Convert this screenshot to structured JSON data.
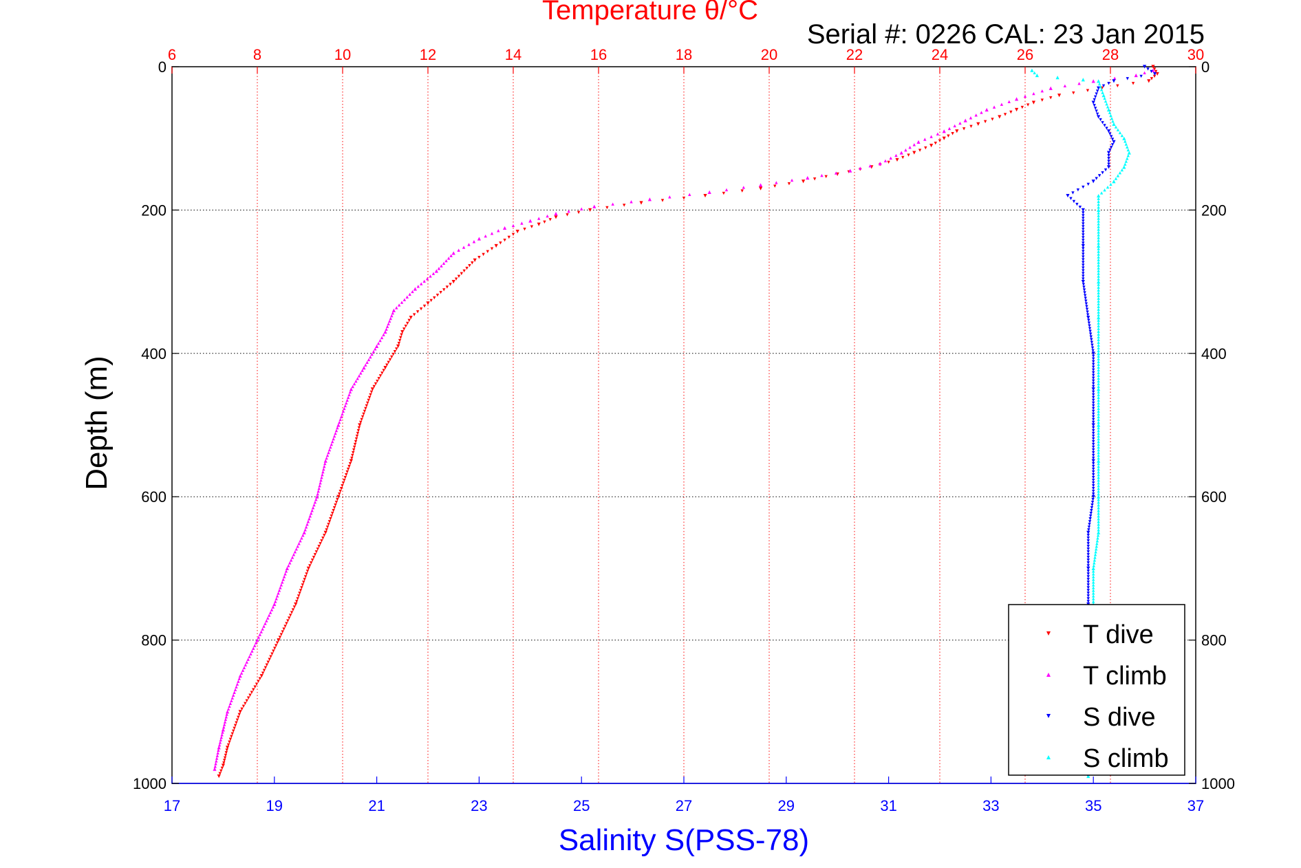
{
  "chart_data": {
    "type": "scatter",
    "title": "Temperature θ/°C",
    "subtitle": "Serial #: 0226  CAL: 23 Jan 2015",
    "ylabel": "Depth (m)",
    "xlabel_bottom": "Salinity S(PSS-78)",
    "ylim": [
      0,
      1000
    ],
    "y_reversed": true,
    "top_axis": {
      "min": 6,
      "max": 30,
      "ticks": [
        6,
        8,
        10,
        12,
        14,
        16,
        18,
        20,
        22,
        24,
        26,
        28,
        30
      ],
      "tick_labels": [
        "6",
        "8",
        "10",
        "12",
        "14",
        "16",
        "18",
        "20",
        "22",
        "24",
        "26",
        "28",
        "30"
      ]
    },
    "bottom_axis": {
      "min": 17,
      "max": 37,
      "ticks": [
        17,
        19,
        21,
        23,
        25,
        27,
        29,
        31,
        33,
        35,
        37
      ],
      "tick_labels": [
        "17",
        "19",
        "21",
        "23",
        "25",
        "27",
        "29",
        "31",
        "33",
        "35",
        "37"
      ]
    },
    "y_ticks": [
      0,
      200,
      400,
      600,
      800,
      1000
    ],
    "y_tick_labels": [
      "0",
      "200",
      "400",
      "600",
      "800",
      "1000"
    ],
    "grid": true,
    "legend_position": "bottom-right",
    "colors": {
      "title": "#ff0000",
      "top_axis": "#ff0000",
      "bottom_axis": "#0000ff",
      "t_dive": "#ff0000",
      "t_climb": "#ff00ff",
      "s_dive": "#0000ff",
      "s_climb": "#00ffff"
    },
    "series": [
      {
        "name": "T dive",
        "axis": "top",
        "color": "#ff0000",
        "marker": "triangle-down",
        "points": [
          [
            29.0,
            0
          ],
          [
            29.1,
            10
          ],
          [
            28.9,
            20
          ],
          [
            27.8,
            30
          ],
          [
            26.8,
            40
          ],
          [
            26.2,
            50
          ],
          [
            25.8,
            60
          ],
          [
            25.4,
            70
          ],
          [
            24.9,
            80
          ],
          [
            24.4,
            90
          ],
          [
            24.1,
            100
          ],
          [
            23.8,
            110
          ],
          [
            23.4,
            120
          ],
          [
            23.0,
            130
          ],
          [
            22.4,
            140
          ],
          [
            21.6,
            150
          ],
          [
            20.8,
            160
          ],
          [
            19.8,
            170
          ],
          [
            18.5,
            180
          ],
          [
            17.0,
            190
          ],
          [
            15.8,
            200
          ],
          [
            15.0,
            210
          ],
          [
            14.6,
            220
          ],
          [
            14.1,
            230
          ],
          [
            13.6,
            250
          ],
          [
            13.1,
            270
          ],
          [
            12.6,
            300
          ],
          [
            12.0,
            330
          ],
          [
            11.6,
            350
          ],
          [
            11.4,
            370
          ],
          [
            11.3,
            390
          ],
          [
            11.0,
            420
          ],
          [
            10.7,
            450
          ],
          [
            10.4,
            500
          ],
          [
            10.2,
            550
          ],
          [
            9.9,
            600
          ],
          [
            9.6,
            650
          ],
          [
            9.2,
            700
          ],
          [
            8.9,
            750
          ],
          [
            8.5,
            800
          ],
          [
            8.1,
            850
          ],
          [
            7.6,
            900
          ],
          [
            7.3,
            950
          ],
          [
            7.2,
            975
          ],
          [
            7.1,
            990
          ]
        ]
      },
      {
        "name": "T climb",
        "axis": "top",
        "color": "#ff00ff",
        "marker": "triangle-up",
        "points": [
          [
            29.0,
            5
          ],
          [
            28.6,
            12
          ],
          [
            27.6,
            20
          ],
          [
            26.6,
            30
          ],
          [
            25.8,
            45
          ],
          [
            25.1,
            60
          ],
          [
            24.6,
            75
          ],
          [
            24.1,
            90
          ],
          [
            23.5,
            105
          ],
          [
            23.1,
            120
          ],
          [
            22.6,
            135
          ],
          [
            21.9,
            145
          ],
          [
            20.9,
            155
          ],
          [
            19.8,
            165
          ],
          [
            18.6,
            175
          ],
          [
            17.2,
            185
          ],
          [
            15.9,
            195
          ],
          [
            15.0,
            205
          ],
          [
            14.4,
            215
          ],
          [
            13.8,
            225
          ],
          [
            13.2,
            240
          ],
          [
            12.6,
            260
          ],
          [
            12.2,
            285
          ],
          [
            11.7,
            310
          ],
          [
            11.2,
            340
          ],
          [
            11.0,
            370
          ],
          [
            10.8,
            390
          ],
          [
            10.5,
            420
          ],
          [
            10.2,
            450
          ],
          [
            9.9,
            500
          ],
          [
            9.6,
            550
          ],
          [
            9.4,
            600
          ],
          [
            9.1,
            650
          ],
          [
            8.7,
            700
          ],
          [
            8.4,
            750
          ],
          [
            8.0,
            800
          ],
          [
            7.6,
            850
          ],
          [
            7.3,
            900
          ],
          [
            7.2,
            925
          ],
          [
            7.1,
            950
          ],
          [
            7.0,
            980
          ]
        ]
      },
      {
        "name": "S dive",
        "axis": "bottom",
        "color": "#0000ff",
        "marker": "triangle-down",
        "points": [
          [
            36.0,
            0
          ],
          [
            36.2,
            10
          ],
          [
            35.4,
            20
          ],
          [
            35.1,
            30
          ],
          [
            35.0,
            50
          ],
          [
            35.1,
            70
          ],
          [
            35.3,
            90
          ],
          [
            35.4,
            105
          ],
          [
            35.3,
            120
          ],
          [
            35.3,
            140
          ],
          [
            35.0,
            160
          ],
          [
            34.5,
            180
          ],
          [
            34.8,
            200
          ],
          [
            34.8,
            250
          ],
          [
            34.8,
            300
          ],
          [
            34.9,
            350
          ],
          [
            35.0,
            400
          ],
          [
            35.0,
            450
          ],
          [
            35.0,
            500
          ],
          [
            35.0,
            550
          ],
          [
            35.0,
            600
          ],
          [
            34.9,
            650
          ],
          [
            34.9,
            700
          ],
          [
            34.9,
            750
          ],
          [
            34.9,
            800
          ],
          [
            34.9,
            850
          ],
          [
            34.9,
            900
          ],
          [
            34.9,
            950
          ],
          [
            34.9,
            990
          ]
        ]
      },
      {
        "name": "S climb",
        "axis": "bottom",
        "color": "#00ffff",
        "marker": "triangle-up",
        "points": [
          [
            33.8,
            5
          ],
          [
            33.9,
            12
          ],
          [
            34.3,
            15
          ],
          [
            34.8,
            18
          ],
          [
            35.1,
            20
          ],
          [
            35.2,
            40
          ],
          [
            35.3,
            60
          ],
          [
            35.4,
            80
          ],
          [
            35.6,
            100
          ],
          [
            35.7,
            120
          ],
          [
            35.6,
            140
          ],
          [
            35.4,
            160
          ],
          [
            35.1,
            180
          ],
          [
            35.1,
            200
          ],
          [
            35.1,
            250
          ],
          [
            35.1,
            300
          ],
          [
            35.1,
            350
          ],
          [
            35.1,
            400
          ],
          [
            35.1,
            450
          ],
          [
            35.1,
            500
          ],
          [
            35.1,
            550
          ],
          [
            35.1,
            600
          ],
          [
            35.1,
            650
          ],
          [
            35.0,
            700
          ],
          [
            35.0,
            750
          ],
          [
            35.0,
            800
          ],
          [
            35.0,
            850
          ],
          [
            35.0,
            900
          ],
          [
            34.9,
            950
          ],
          [
            34.9,
            990
          ]
        ]
      }
    ]
  }
}
